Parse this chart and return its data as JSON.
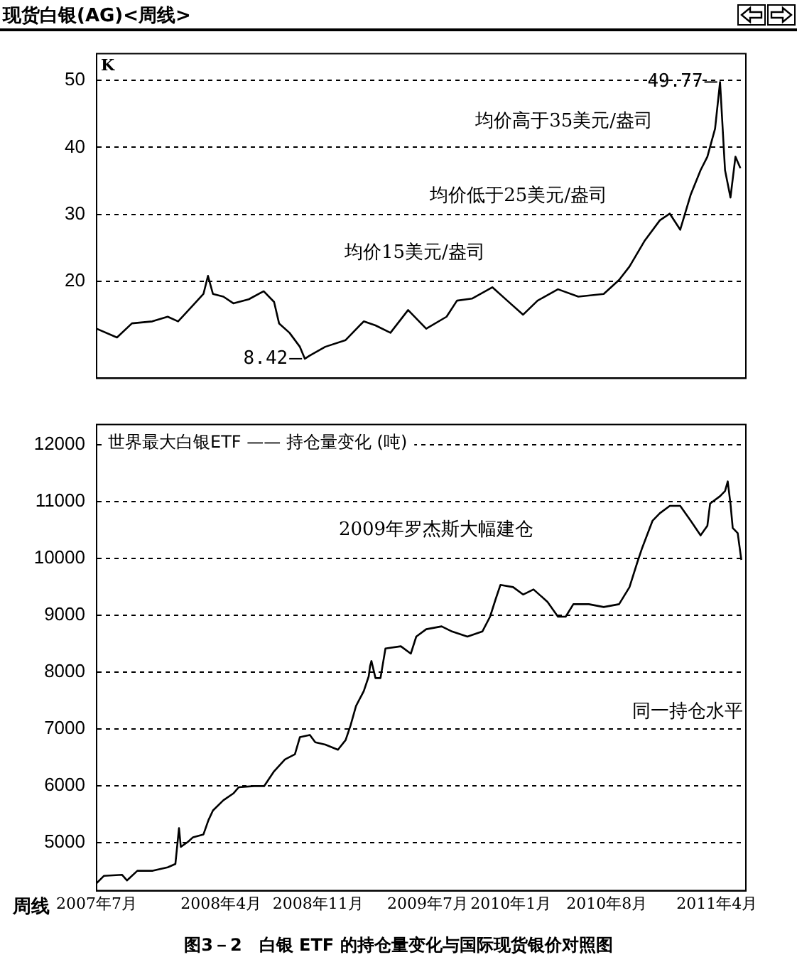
{
  "chart_data": [
    {
      "type": "line",
      "title": "现货白银(AG)<周线>",
      "ylabel": "K",
      "ylim": [
        5.5,
        54
      ],
      "yticks": [
        20,
        30,
        40,
        50
      ],
      "xlim": [
        "2007-07-01",
        "2011-06-04"
      ],
      "tick_labels": "y",
      "grid": "y",
      "legend": false,
      "marker": "none",
      "line_style": "solid",
      "x": [
        "2007-07-01",
        "2007-08-15",
        "2007-09-17",
        "2007-11-01",
        "2007-12-05",
        "2007-12-28",
        "2008-01-30",
        "2008-02-22",
        "2008-03-03",
        "2008-03-14",
        "2008-04-06",
        "2008-04-28",
        "2008-06-01",
        "2008-07-04",
        "2008-07-27",
        "2008-08-07",
        "2008-08-30",
        "2008-09-22",
        "2008-10-03",
        "2008-10-14",
        "2008-11-17",
        "2009-01-01",
        "2009-02-10",
        "2009-03-08",
        "2009-04-10",
        "2009-05-19",
        "2009-06-28",
        "2009-08-12",
        "2009-09-04",
        "2009-10-07",
        "2009-11-21",
        "2009-12-24",
        "2010-01-28",
        "2010-03-01",
        "2010-04-15",
        "2010-05-30",
        "2010-07-25",
        "2010-08-28",
        "2010-09-20",
        "2010-10-23",
        "2010-11-26",
        "2010-12-18",
        "2011-01-10",
        "2011-02-02",
        "2011-02-24",
        "2011-03-11",
        "2011-03-28",
        "2011-04-08",
        "2011-04-19",
        "2011-05-01",
        "2011-05-12",
        "2011-05-23"
      ],
      "series": [
        {
          "color": "#000000",
          "values": [
            12.9,
            11.6,
            13.7,
            14.0,
            14.7,
            14.0,
            16.4,
            18.1,
            20.8,
            18.1,
            17.7,
            16.7,
            17.3,
            18.5,
            16.9,
            13.7,
            12.3,
            10.2,
            8.42,
            8.9,
            10.2,
            11.2,
            14.0,
            13.4,
            12.3,
            15.7,
            12.9,
            14.7,
            17.1,
            17.4,
            19.1,
            17.1,
            15.0,
            17.1,
            18.8,
            17.7,
            18.1,
            20.2,
            22.2,
            26.0,
            29.1,
            30.1,
            27.7,
            32.9,
            36.6,
            38.6,
            42.8,
            49.77,
            36.6,
            32.5,
            38.6,
            36.9
          ]
        }
      ],
      "annotations": [
        {
          "text": "49.77",
          "x": "2011-04-08",
          "y": 49.77
        },
        {
          "text": "8.42",
          "x": "2008-10-03",
          "y": 8.42
        },
        "均价高于35美元/盎司",
        "均价低于25美元/盎司",
        "均价15美元/盎司"
      ]
    },
    {
      "type": "line",
      "title": "世界最大白银ETF —— 持仓量变化 (吨)",
      "xlabel": "周线",
      "ylim": [
        4150,
        12350
      ],
      "yticks": [
        5000,
        6000,
        7000,
        8000,
        9000,
        10000,
        11000,
        12000
      ],
      "xlim": [
        "2007-07-01",
        "2011-06-04"
      ],
      "xticks": [
        {
          "value": "2007-07-01",
          "label": "2007年7月"
        },
        {
          "value": "2008-04-01",
          "label": "2008年4月"
        },
        {
          "value": "2008-11-01",
          "label": "2008年11月"
        },
        {
          "value": "2009-07-01",
          "label": "2009年7月"
        },
        {
          "value": "2010-01-01",
          "label": "2010年1月"
        },
        {
          "value": "2010-08-01",
          "label": "2010年8月"
        },
        {
          "value": "2011-04-01",
          "label": "2011年4月"
        }
      ],
      "grid": "y",
      "legend": false,
      "marker": "none",
      "line_style": "solid",
      "x": [
        "2007-07-01",
        "2007-07-17",
        "2007-08-26",
        "2007-09-06",
        "2007-09-29",
        "2007-11-02",
        "2007-12-05",
        "2007-12-22",
        "2007-12-30",
        "2008-01-03",
        "2008-01-19",
        "2008-01-30",
        "2008-02-22",
        "2008-03-04",
        "2008-03-14",
        "2008-04-06",
        "2008-04-28",
        "2008-05-10",
        "2008-06-13",
        "2008-07-05",
        "2008-07-27",
        "2008-08-20",
        "2008-09-11",
        "2008-09-22",
        "2008-10-14",
        "2008-10-26",
        "2008-11-17",
        "2008-12-15",
        "2009-01-01",
        "2009-01-12",
        "2009-01-24",
        "2009-02-10",
        "2009-02-21",
        "2009-02-24",
        "2009-02-27",
        "2009-03-08",
        "2009-03-19",
        "2009-03-30",
        "2009-05-03",
        "2009-05-25",
        "2009-06-06",
        "2009-06-28",
        "2009-08-01",
        "2009-08-24",
        "2009-09-27",
        "2009-10-30",
        "2009-11-16",
        "2009-11-28",
        "2009-12-09",
        "2010-01-06",
        "2010-01-28",
        "2010-02-20",
        "2010-03-23",
        "2010-04-15",
        "2010-05-02",
        "2010-05-19",
        "2010-06-22",
        "2010-07-25",
        "2010-08-28",
        "2010-09-20",
        "2010-10-07",
        "2010-10-18",
        "2010-11-10",
        "2010-11-26",
        "2010-12-18",
        "2011-01-10",
        "2011-02-02",
        "2011-02-24",
        "2011-03-11",
        "2011-03-17",
        "2011-04-08",
        "2011-04-19",
        "2011-04-25",
        "2011-05-01",
        "2011-05-06",
        "2011-05-17",
        "2011-05-25"
      ],
      "series": [
        {
          "color": "#000000",
          "values": [
            4280,
            4410,
            4430,
            4330,
            4500,
            4500,
            4560,
            4620,
            5250,
            4920,
            5010,
            5090,
            5140,
            5390,
            5560,
            5740,
            5860,
            5970,
            5990,
            5990,
            6250,
            6460,
            6550,
            6850,
            6890,
            6760,
            6720,
            6630,
            6800,
            7060,
            7400,
            7660,
            7920,
            8100,
            8190,
            7890,
            7890,
            8410,
            8450,
            8320,
            8620,
            8750,
            8800,
            8710,
            8620,
            8710,
            8970,
            9270,
            9530,
            9490,
            9360,
            9450,
            9230,
            8970,
            8970,
            9190,
            9190,
            9140,
            9190,
            9490,
            9920,
            10180,
            10660,
            10790,
            10920,
            10920,
            10660,
            10400,
            10570,
            10960,
            11090,
            11180,
            11350,
            10960,
            10530,
            10440,
            9970
          ]
        }
      ],
      "annotations": [
        "2009年罗杰斯大幅建仓",
        "同一持仓水平",
        "图3－2　白银 ETF 的持仓量变化与国际现货银价对照图"
      ]
    }
  ]
}
